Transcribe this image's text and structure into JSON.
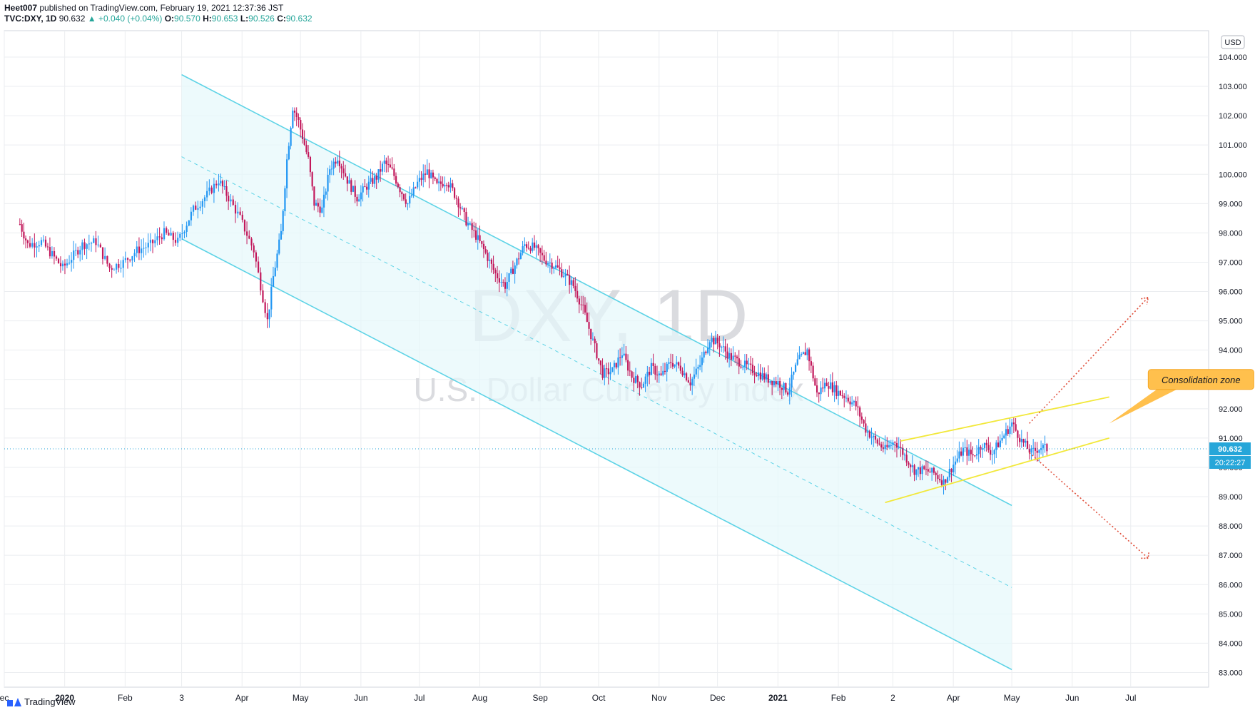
{
  "header": {
    "publisher_line_user": "Heet007",
    "publisher_line_rest": " published on TradingView.com, February 19, 2021 12:37:36 JST",
    "symbol": "TVC:DXY, 1D",
    "price": "90.632",
    "change": "▲ +0.040 (+0.04%)",
    "o_label": "O:",
    "o_value": "90.570",
    "h_label": "H:",
    "h_value": "90.653",
    "l_label": "L:",
    "l_value": "90.526",
    "c_label": "C:",
    "c_value": "90.632"
  },
  "watermark": {
    "symbol": "DXY, 1D",
    "name": "U.S. Dollar Currency Index"
  },
  "footer": {
    "brand": "TradingView"
  },
  "colors": {
    "up": "#2196f3",
    "down": "#c2185b",
    "channel": "#5dd3e6",
    "channel_fill": "#e6f8fb",
    "consolidation": "#f2e83a",
    "arrow": "#e0503c",
    "grid": "#ebedf0",
    "callout": "#ffc04d"
  },
  "chart_data": {
    "type": "candlestick",
    "currency": "USD",
    "y_ticks": [
      "104.000",
      "103.000",
      "102.000",
      "101.000",
      "100.000",
      "99.000",
      "98.000",
      "97.000",
      "96.000",
      "95.000",
      "94.000",
      "93.000",
      "92.000",
      "91.000",
      "90.000",
      "89.000",
      "88.000",
      "87.000",
      "86.000",
      "85.000",
      "84.000",
      "83.000"
    ],
    "ylim": [
      82.5,
      104.9
    ],
    "x_labels": [
      {
        "date": "2019-12",
        "label": "ec"
      },
      {
        "date": "2020-01",
        "label": "2020"
      },
      {
        "date": "2020-02",
        "label": "Feb"
      },
      {
        "date": "2020-03",
        "label": "3"
      },
      {
        "date": "2020-04",
        "label": "Apr"
      },
      {
        "date": "2020-05",
        "label": "May"
      },
      {
        "date": "2020-06",
        "label": "Jun"
      },
      {
        "date": "2020-07",
        "label": "Jul"
      },
      {
        "date": "2020-08",
        "label": "Aug"
      },
      {
        "date": "2020-09",
        "label": "Sep"
      },
      {
        "date": "2020-10",
        "label": "Oct"
      },
      {
        "date": "2020-11",
        "label": "Nov"
      },
      {
        "date": "2020-12",
        "label": "Dec"
      },
      {
        "date": "2021-01",
        "label": "2021"
      },
      {
        "date": "2021-02",
        "label": "Feb"
      },
      {
        "date": "2021-03",
        "label": "2"
      },
      {
        "date": "2021-04",
        "label": "Apr"
      },
      {
        "date": "2021-05",
        "label": "May"
      },
      {
        "date": "2021-06",
        "label": "Jun"
      },
      {
        "date": "2021-07",
        "label": "Jul"
      }
    ],
    "last_price_label": "90.632",
    "countdown_label": "20:22:27",
    "last_price": 90.632,
    "closes": [
      {
        "date": "2019-12-09",
        "close": 98.3
      },
      {
        "date": "2019-12-13",
        "close": 97.6
      },
      {
        "date": "2019-12-20",
        "close": 97.7
      },
      {
        "date": "2019-12-31",
        "close": 96.8
      },
      {
        "date": "2020-01-10",
        "close": 97.6
      },
      {
        "date": "2020-01-17",
        "close": 97.7
      },
      {
        "date": "2020-01-24",
        "close": 96.8
      },
      {
        "date": "2020-01-31",
        "close": 97.0
      },
      {
        "date": "2020-02-07",
        "close": 97.4
      },
      {
        "date": "2020-02-14",
        "close": 97.6
      },
      {
        "date": "2020-02-21",
        "close": 98.0
      },
      {
        "date": "2020-02-28",
        "close": 97.7
      },
      {
        "date": "2020-03-07",
        "close": 98.8
      },
      {
        "date": "2020-03-14",
        "close": 99.3
      },
      {
        "date": "2020-03-20",
        "close": 99.8
      },
      {
        "date": "2020-03-25",
        "close": 99.2
      },
      {
        "date": "2020-03-31",
        "close": 98.5
      },
      {
        "date": "2020-04-07",
        "close": 97.4
      },
      {
        "date": "2020-04-14",
        "close": 95.0
      },
      {
        "date": "2020-04-17",
        "close": 96.5
      },
      {
        "date": "2020-04-21",
        "close": 98.0
      },
      {
        "date": "2020-04-24",
        "close": 100.5
      },
      {
        "date": "2020-04-27",
        "close": 102.3
      },
      {
        "date": "2020-04-30",
        "close": 101.8
      },
      {
        "date": "2020-05-05",
        "close": 100.5
      },
      {
        "date": "2020-05-08",
        "close": 99.0
      },
      {
        "date": "2020-05-12",
        "close": 98.8
      },
      {
        "date": "2020-05-16",
        "close": 100.2
      },
      {
        "date": "2020-05-20",
        "close": 100.6
      },
      {
        "date": "2020-05-25",
        "close": 99.8
      },
      {
        "date": "2020-05-30",
        "close": 99.2
      },
      {
        "date": "2020-06-04",
        "close": 99.6
      },
      {
        "date": "2020-06-09",
        "close": 99.9
      },
      {
        "date": "2020-06-13",
        "close": 100.4
      },
      {
        "date": "2020-06-17",
        "close": 100.1
      },
      {
        "date": "2020-06-21",
        "close": 99.5
      },
      {
        "date": "2020-06-25",
        "close": 99.0
      },
      {
        "date": "2020-06-30",
        "close": 99.7
      },
      {
        "date": "2020-07-05",
        "close": 100.1
      },
      {
        "date": "2020-07-10",
        "close": 99.6
      },
      {
        "date": "2020-07-15",
        "close": 99.8
      },
      {
        "date": "2020-07-20",
        "close": 99.2
      },
      {
        "date": "2020-07-25",
        "close": 98.4
      },
      {
        "date": "2020-07-30",
        "close": 97.9
      },
      {
        "date": "2020-08-04",
        "close": 97.3
      },
      {
        "date": "2020-08-09",
        "close": 96.6
      },
      {
        "date": "2020-08-14",
        "close": 96.2
      },
      {
        "date": "2020-08-19",
        "close": 96.9
      },
      {
        "date": "2020-08-24",
        "close": 97.6
      },
      {
        "date": "2020-08-29",
        "close": 97.5
      },
      {
        "date": "2020-09-03",
        "close": 97.1
      },
      {
        "date": "2020-09-08",
        "close": 96.9
      },
      {
        "date": "2020-09-13",
        "close": 96.6
      },
      {
        "date": "2020-09-18",
        "close": 96.2
      },
      {
        "date": "2020-09-23",
        "close": 95.4
      },
      {
        "date": "2020-09-28",
        "close": 94.3
      },
      {
        "date": "2020-10-03",
        "close": 93.2
      },
      {
        "date": "2020-10-08",
        "close": 93.3
      },
      {
        "date": "2020-10-13",
        "close": 93.9
      },
      {
        "date": "2020-10-18",
        "close": 93.1
      },
      {
        "date": "2020-10-23",
        "close": 92.8
      },
      {
        "date": "2020-10-28",
        "close": 93.4
      },
      {
        "date": "2020-11-02",
        "close": 93.1
      },
      {
        "date": "2020-11-07",
        "close": 93.6
      },
      {
        "date": "2020-11-12",
        "close": 93.4
      },
      {
        "date": "2020-11-17",
        "close": 92.9
      },
      {
        "date": "2020-11-22",
        "close": 93.5
      },
      {
        "date": "2020-11-27",
        "close": 94.4
      },
      {
        "date": "2020-12-02",
        "close": 94.2
      },
      {
        "date": "2020-12-07",
        "close": 93.8
      },
      {
        "date": "2020-12-12",
        "close": 93.6
      },
      {
        "date": "2020-12-17",
        "close": 93.4
      },
      {
        "date": "2020-12-22",
        "close": 93.2
      },
      {
        "date": "2020-12-27",
        "close": 93.0
      },
      {
        "date": "2021-01-01",
        "close": 92.9
      },
      {
        "date": "2021-01-06",
        "close": 92.6
      },
      {
        "date": "2021-01-11",
        "close": 93.6
      },
      {
        "date": "2021-01-16",
        "close": 94.0
      },
      {
        "date": "2021-01-21",
        "close": 92.5
      },
      {
        "date": "2021-01-26",
        "close": 92.9
      },
      {
        "date": "2021-01-31",
        "close": 92.6
      },
      {
        "date": "2021-02-05",
        "close": 92.4
      },
      {
        "date": "2021-02-10",
        "close": 92.1
      },
      {
        "date": "2021-02-15",
        "close": 91.3
      },
      {
        "date": "2021-02-20",
        "close": 90.9
      },
      {
        "date": "2021-02-25",
        "close": 90.6
      },
      {
        "date": "2021-03-02",
        "close": 90.9
      },
      {
        "date": "2021-03-07",
        "close": 90.4
      },
      {
        "date": "2021-03-12",
        "close": 89.9
      },
      {
        "date": "2021-03-17",
        "close": 89.9
      },
      {
        "date": "2021-03-22",
        "close": 89.8
      },
      {
        "date": "2021-03-27",
        "close": 89.5
      },
      {
        "date": "2021-04-01",
        "close": 90.1
      },
      {
        "date": "2021-04-06",
        "close": 90.6
      },
      {
        "date": "2021-04-11",
        "close": 90.4
      },
      {
        "date": "2021-04-16",
        "close": 90.8
      },
      {
        "date": "2021-04-21",
        "close": 90.5
      },
      {
        "date": "2021-04-26",
        "close": 91.0
      },
      {
        "date": "2021-05-01",
        "close": 91.5
      },
      {
        "date": "2021-05-06",
        "close": 90.9
      },
      {
        "date": "2021-05-11",
        "close": 90.5
      },
      {
        "date": "2021-05-16",
        "close": 90.7
      },
      {
        "date": "2021-05-19",
        "close": 90.63
      }
    ],
    "annotations": {
      "consolidation_label": "Consolidation zone"
    }
  }
}
